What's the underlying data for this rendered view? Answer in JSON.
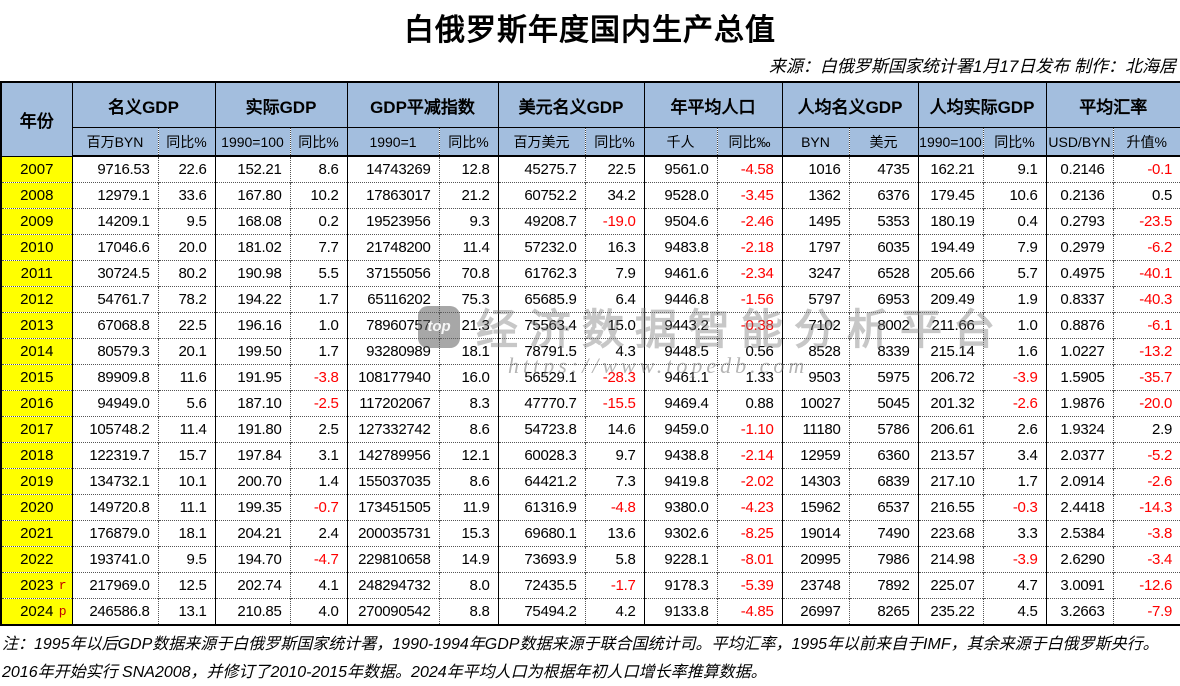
{
  "title": "白俄罗斯年度国内生产总值",
  "source_line": "来源：白俄罗斯国家统计署1月17日发布  制作：北海居",
  "note": "注：1995年以后GDP数据来源于白俄罗斯国家统计署，1990-1994年GDP数据来源于联合国统计司。平均汇率，1995年以前来自于IMF，其余来源于白俄罗斯央行。2016年开始实行 SNA2008，并修订了2010-2015年数据。2024年平均人口为根据年初人口增长率推算数据。",
  "watermark": {
    "logo": "top",
    "text": "经济数据智能分析平台",
    "url": "https://www.topedb.com"
  },
  "colors": {
    "header_bg": "#a3bede",
    "year_bg": "#ffff00",
    "negative": "#ff0000",
    "text": "#000000"
  },
  "chart_data": {
    "type": "table",
    "title": "白俄罗斯年度国内生产总值",
    "year_header": "年份",
    "column_groups": [
      {
        "label": "名义GDP",
        "cols": [
          "百万BYN",
          "同比%"
        ]
      },
      {
        "label": "实际GDP",
        "cols": [
          "1990=100",
          "同比%"
        ]
      },
      {
        "label": "GDP平减指数",
        "cols": [
          "1990=1",
          "同比%"
        ]
      },
      {
        "label": "美元名义GDP",
        "cols": [
          "百万美元",
          "同比%"
        ]
      },
      {
        "label": "年平均人口",
        "cols": [
          "千人",
          "同比‰"
        ]
      },
      {
        "label": "人均名义GDP",
        "cols": [
          "BYN",
          "美元"
        ]
      },
      {
        "label": "人均实际GDP",
        "cols": [
          "1990=100",
          "同比%"
        ]
      },
      {
        "label": "平均汇率",
        "cols": [
          "USD/BYN",
          "升值%"
        ]
      }
    ],
    "rows": [
      {
        "year": "2007",
        "mark": "",
        "values": [
          "9716.53",
          "22.6",
          "152.21",
          "8.6",
          "14743269",
          "12.8",
          "45275.7",
          "22.5",
          "9561.0",
          "-4.58",
          "1016",
          "4735",
          "162.21",
          "9.1",
          "0.2146",
          "-0.1"
        ]
      },
      {
        "year": "2008",
        "mark": "",
        "values": [
          "12979.1",
          "33.6",
          "167.80",
          "10.2",
          "17863017",
          "21.2",
          "60752.2",
          "34.2",
          "9528.0",
          "-3.45",
          "1362",
          "6376",
          "179.45",
          "10.6",
          "0.2136",
          "0.5"
        ]
      },
      {
        "year": "2009",
        "mark": "",
        "values": [
          "14209.1",
          "9.5",
          "168.08",
          "0.2",
          "19523956",
          "9.3",
          "49208.7",
          "-19.0",
          "9504.6",
          "-2.46",
          "1495",
          "5353",
          "180.19",
          "0.4",
          "0.2793",
          "-23.5"
        ]
      },
      {
        "year": "2010",
        "mark": "",
        "values": [
          "17046.6",
          "20.0",
          "181.02",
          "7.7",
          "21748200",
          "11.4",
          "57232.0",
          "16.3",
          "9483.8",
          "-2.18",
          "1797",
          "6035",
          "194.49",
          "7.9",
          "0.2979",
          "-6.2"
        ]
      },
      {
        "year": "2011",
        "mark": "",
        "values": [
          "30724.5",
          "80.2",
          "190.98",
          "5.5",
          "37155056",
          "70.8",
          "61762.3",
          "7.9",
          "9461.6",
          "-2.34",
          "3247",
          "6528",
          "205.66",
          "5.7",
          "0.4975",
          "-40.1"
        ]
      },
      {
        "year": "2012",
        "mark": "",
        "values": [
          "54761.7",
          "78.2",
          "194.22",
          "1.7",
          "65116202",
          "75.3",
          "65685.9",
          "6.4",
          "9446.8",
          "-1.56",
          "5797",
          "6953",
          "209.49",
          "1.9",
          "0.8337",
          "-40.3"
        ]
      },
      {
        "year": "2013",
        "mark": "",
        "values": [
          "67068.8",
          "22.5",
          "196.16",
          "1.0",
          "78960757",
          "21.3",
          "75563.4",
          "15.0",
          "9443.2",
          "-0.38",
          "7102",
          "8002",
          "211.66",
          "1.0",
          "0.8876",
          "-6.1"
        ]
      },
      {
        "year": "2014",
        "mark": "",
        "values": [
          "80579.3",
          "20.1",
          "199.50",
          "1.7",
          "93280989",
          "18.1",
          "78791.5",
          "4.3",
          "9448.5",
          "0.56",
          "8528",
          "8339",
          "215.14",
          "1.6",
          "1.0227",
          "-13.2"
        ]
      },
      {
        "year": "2015",
        "mark": "",
        "values": [
          "89909.8",
          "11.6",
          "191.95",
          "-3.8",
          "108177940",
          "16.0",
          "56529.1",
          "-28.3",
          "9461.1",
          "1.33",
          "9503",
          "5975",
          "206.72",
          "-3.9",
          "1.5905",
          "-35.7"
        ]
      },
      {
        "year": "2016",
        "mark": "",
        "values": [
          "94949.0",
          "5.6",
          "187.10",
          "-2.5",
          "117202067",
          "8.3",
          "47770.7",
          "-15.5",
          "9469.4",
          "0.88",
          "10027",
          "5045",
          "201.32",
          "-2.6",
          "1.9876",
          "-20.0"
        ]
      },
      {
        "year": "2017",
        "mark": "",
        "values": [
          "105748.2",
          "11.4",
          "191.80",
          "2.5",
          "127332742",
          "8.6",
          "54723.8",
          "14.6",
          "9459.0",
          "-1.10",
          "11180",
          "5786",
          "206.61",
          "2.6",
          "1.9324",
          "2.9"
        ]
      },
      {
        "year": "2018",
        "mark": "",
        "values": [
          "122319.7",
          "15.7",
          "197.84",
          "3.1",
          "142789956",
          "12.1",
          "60028.3",
          "9.7",
          "9438.8",
          "-2.14",
          "12959",
          "6360",
          "213.57",
          "3.4",
          "2.0377",
          "-5.2"
        ]
      },
      {
        "year": "2019",
        "mark": "",
        "values": [
          "134732.1",
          "10.1",
          "200.70",
          "1.4",
          "155037035",
          "8.6",
          "64421.2",
          "7.3",
          "9419.8",
          "-2.02",
          "14303",
          "6839",
          "217.10",
          "1.7",
          "2.0914",
          "-2.6"
        ]
      },
      {
        "year": "2020",
        "mark": "",
        "values": [
          "149720.8",
          "11.1",
          "199.35",
          "-0.7",
          "173451505",
          "11.9",
          "61316.9",
          "-4.8",
          "9380.0",
          "-4.23",
          "15962",
          "6537",
          "216.55",
          "-0.3",
          "2.4418",
          "-14.3"
        ]
      },
      {
        "year": "2021",
        "mark": "",
        "values": [
          "176879.0",
          "18.1",
          "204.21",
          "2.4",
          "200035731",
          "15.3",
          "69680.1",
          "13.6",
          "9302.6",
          "-8.25",
          "19014",
          "7490",
          "223.68",
          "3.3",
          "2.5384",
          "-3.8"
        ]
      },
      {
        "year": "2022",
        "mark": "",
        "values": [
          "193741.0",
          "9.5",
          "194.70",
          "-4.7",
          "229810658",
          "14.9",
          "73693.9",
          "5.8",
          "9228.1",
          "-8.01",
          "20995",
          "7986",
          "214.98",
          "-3.9",
          "2.6290",
          "-3.4"
        ]
      },
      {
        "year": "2023",
        "mark": "r",
        "values": [
          "217969.0",
          "12.5",
          "202.74",
          "4.1",
          "248294732",
          "8.0",
          "72435.5",
          "-1.7",
          "9178.3",
          "-5.39",
          "23748",
          "7892",
          "225.07",
          "4.7",
          "3.0091",
          "-12.6"
        ]
      },
      {
        "year": "2024",
        "mark": "p",
        "values": [
          "246586.8",
          "13.1",
          "210.85",
          "4.0",
          "270090542",
          "8.8",
          "75494.2",
          "4.2",
          "9133.8",
          "-4.85",
          "26997",
          "8265",
          "235.22",
          "4.5",
          "3.2663",
          "-7.9"
        ]
      }
    ]
  }
}
